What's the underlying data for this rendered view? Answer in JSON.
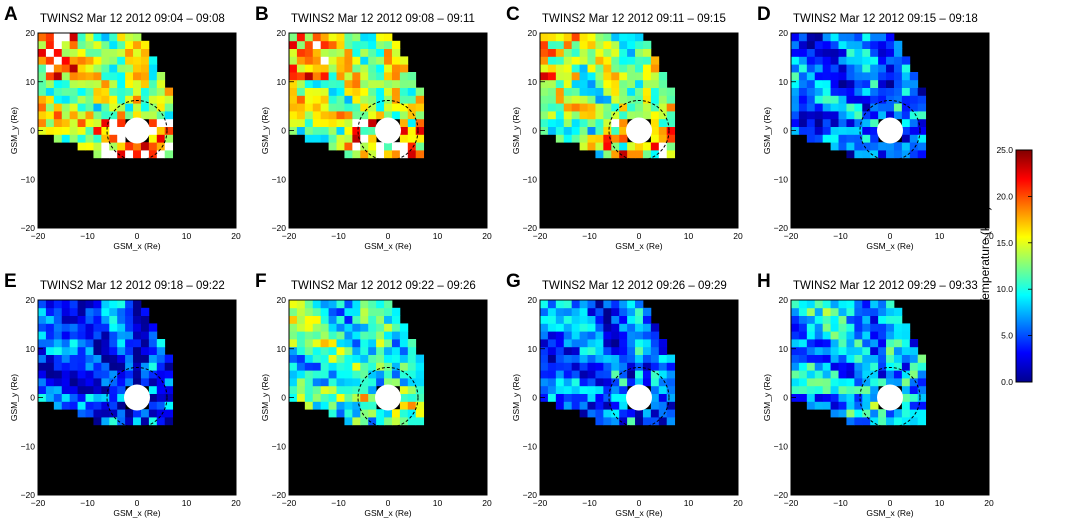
{
  "colors": {
    "background": "#000000",
    "earth": "#ffffff",
    "boundary": "#000000"
  },
  "chart_data": {
    "type": "heatmap",
    "panels": [
      {
        "letter": "A",
        "title": "TWINS2   Mar 12 2012 09:04 – 09:08",
        "level": 0.55,
        "hot": 0.95
      },
      {
        "letter": "B",
        "title": "TWINS2   Mar 12 2012 09:08 – 09:11",
        "level": 0.55,
        "hot": 0.9
      },
      {
        "letter": "C",
        "title": "TWINS2   Mar 12 2012 09:11 – 09:15",
        "level": 0.5,
        "hot": 0.9
      },
      {
        "letter": "D",
        "title": "TWINS2   Mar 12 2012 09:15 – 09:18",
        "level": 0.22,
        "hot": 0.05
      },
      {
        "letter": "E",
        "title": "TWINS2   Mar 12 2012 09:18 – 09:22",
        "level": 0.18,
        "hot": 0.0
      },
      {
        "letter": "F",
        "title": "TWINS2   Mar 12 2012 09:22 – 09:26",
        "level": 0.4,
        "hot": 0.25
      },
      {
        "letter": "G",
        "title": "TWINS2   Mar 12 2012 09:26 – 09:29",
        "level": 0.22,
        "hot": 0.0
      },
      {
        "letter": "H",
        "title": "TWINS2   Mar 12 2012 09:29 – 09:33",
        "level": 0.3,
        "hot": 0.1
      }
    ],
    "xlabel": "GSM_x (Re)",
    "ylabel": "GSM_y (Re)",
    "xlim": [
      -20,
      20
    ],
    "ylim": [
      -20,
      20
    ],
    "xticks": [
      "−20",
      "−10",
      "0",
      "10",
      "20"
    ],
    "yticks": [
      "20",
      "10",
      "0",
      "−10",
      "−20"
    ],
    "colorbar": {
      "label": "Ion Temperature (keV)",
      "range": [
        0,
        25
      ],
      "ticks": [
        "25.0",
        "20.0",
        "15.0",
        "10.0",
        "5.0",
        "0.0"
      ],
      "colormap": [
        "#00008f",
        "#0000ff",
        "#0080ff",
        "#00ffff",
        "#80ff80",
        "#ffff00",
        "#ff8000",
        "#ff0000",
        "#800000"
      ]
    }
  }
}
